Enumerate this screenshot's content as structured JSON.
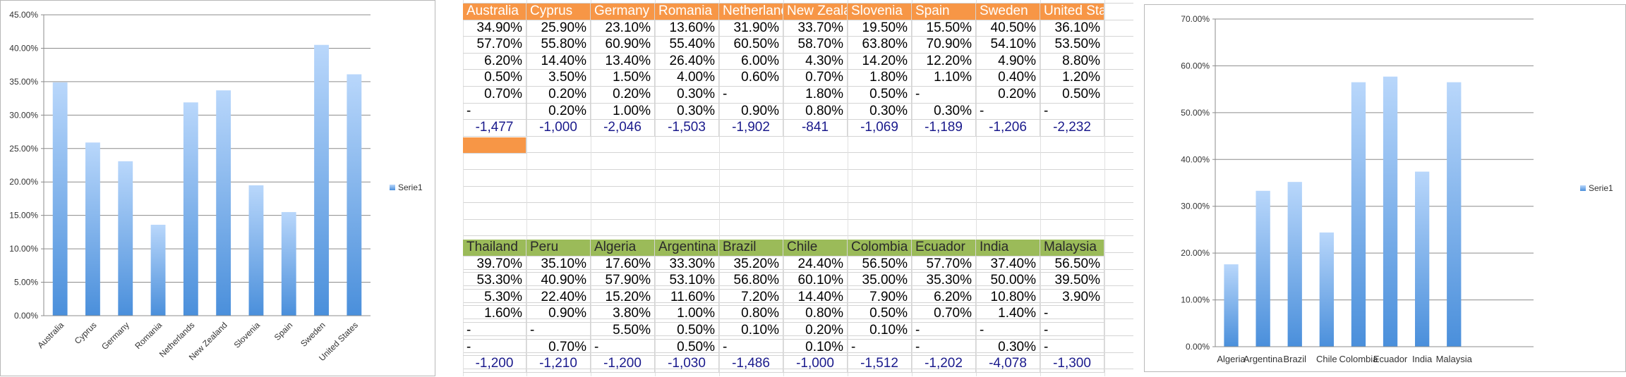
{
  "chart_data": [
    {
      "type": "bar",
      "categories": [
        "Australia",
        "Cyprus",
        "Germany",
        "Romania",
        "Netherlands",
        "New Zealand",
        "Slovenia",
        "Spain",
        "Sweden",
        "United States"
      ],
      "series": [
        {
          "name": "Serie1",
          "values": [
            34.9,
            25.9,
            23.1,
            13.6,
            31.9,
            33.7,
            19.5,
            15.5,
            40.5,
            36.1
          ]
        }
      ],
      "ylim": [
        0,
        45
      ],
      "yticks": [
        "0.00%",
        "5.00%",
        "10.00%",
        "15.00%",
        "20.00%",
        "25.00%",
        "30.00%",
        "35.00%",
        "40.00%",
        "45.00%"
      ],
      "grid": true,
      "legend": "right",
      "bar_color_top": "#b9d7fb",
      "bar_color_bottom": "#4a8fdb"
    },
    {
      "type": "bar",
      "categories": [
        "Algeria",
        "Argentina",
        "Brazil",
        "Chile",
        "Colombia",
        "Ecuador",
        "India",
        "Malaysia"
      ],
      "series": [
        {
          "name": "Serie1",
          "values": [
            17.6,
            33.3,
            35.2,
            24.4,
            56.5,
            57.7,
            37.4,
            56.5
          ]
        }
      ],
      "ylim": [
        0,
        70
      ],
      "yticks": [
        "0.00%",
        "10.00%",
        "20.00%",
        "30.00%",
        "40.00%",
        "50.00%",
        "60.00%",
        "70.00%"
      ],
      "grid": true,
      "legend": "right",
      "slots": 10,
      "bar_color_top": "#b9d7fb",
      "bar_color_bottom": "#4a8fdb"
    }
  ],
  "sheet": {
    "header_colors": {
      "orange": "#f79646",
      "green": "#9bbb59"
    },
    "table1": {
      "headers": [
        "Australia",
        "Cyprus",
        "Germany",
        "Romania",
        "Netherlands",
        "New Zealand",
        "Slovenia",
        "Spain",
        "Sweden",
        "United States"
      ],
      "rows": [
        [
          "34.90%",
          "25.90%",
          "23.10%",
          "13.60%",
          "31.90%",
          "33.70%",
          "19.50%",
          "15.50%",
          "40.50%",
          "36.10%"
        ],
        [
          "57.70%",
          "55.80%",
          "60.90%",
          "55.40%",
          "60.50%",
          "58.70%",
          "63.80%",
          "70.90%",
          "54.10%",
          "53.50%"
        ],
        [
          "6.20%",
          "14.40%",
          "13.40%",
          "26.40%",
          "6.00%",
          "4.30%",
          "14.20%",
          "12.20%",
          "4.90%",
          "8.80%"
        ],
        [
          "0.50%",
          "3.50%",
          "1.50%",
          "4.00%",
          "0.60%",
          "0.70%",
          "1.80%",
          "1.10%",
          "0.40%",
          "1.20%"
        ],
        [
          "0.70%",
          "0.20%",
          "0.20%",
          "0.30%",
          "-",
          "1.80%",
          "0.50%",
          "-",
          "0.20%",
          "0.50%"
        ],
        [
          "-",
          "0.20%",
          "1.00%",
          "0.30%",
          "0.90%",
          "0.80%",
          "0.30%",
          "0.30%",
          "-",
          "-"
        ],
        [
          "-1,477",
          "-1,000",
          "-2,046",
          "-1,503",
          "-1,902",
          "-841",
          "-1,069",
          "-1,189",
          "-1,206",
          "-2,232"
        ]
      ]
    },
    "table2": {
      "headers": [
        "Thailand",
        "Peru",
        "Algeria",
        "Argentina",
        "Brazil",
        "Chile",
        "Colombia",
        "Ecuador",
        "India",
        "Malaysia"
      ],
      "rows": [
        [
          "39.70%",
          "35.10%",
          "17.60%",
          "33.30%",
          "35.20%",
          "24.40%",
          "56.50%",
          "57.70%",
          "37.40%",
          "56.50%"
        ],
        [
          "53.30%",
          "40.90%",
          "57.90%",
          "53.10%",
          "56.80%",
          "60.10%",
          "35.00%",
          "35.30%",
          "50.00%",
          "39.50%"
        ],
        [
          "5.30%",
          "22.40%",
          "15.20%",
          "11.60%",
          "7.20%",
          "14.40%",
          "7.90%",
          "6.20%",
          "10.80%",
          "3.90%"
        ],
        [
          "1.60%",
          "0.90%",
          "3.80%",
          "1.00%",
          "0.80%",
          "0.80%",
          "0.50%",
          "0.70%",
          "1.40%",
          "-"
        ],
        [
          "-",
          "-",
          "5.50%",
          "0.50%",
          "0.10%",
          "0.20%",
          "0.10%",
          "-",
          "-",
          "-"
        ],
        [
          "-",
          "0.70%",
          "-",
          "0.50%",
          "-",
          "0.10%",
          "-",
          "-",
          "0.30%",
          "-"
        ],
        [
          "-1,200",
          "-1,210",
          "-1,200",
          "-1,030",
          "-1,486",
          "-1,000",
          "-1,512",
          "-1,202",
          "-4,078",
          "-1,300"
        ]
      ]
    }
  }
}
